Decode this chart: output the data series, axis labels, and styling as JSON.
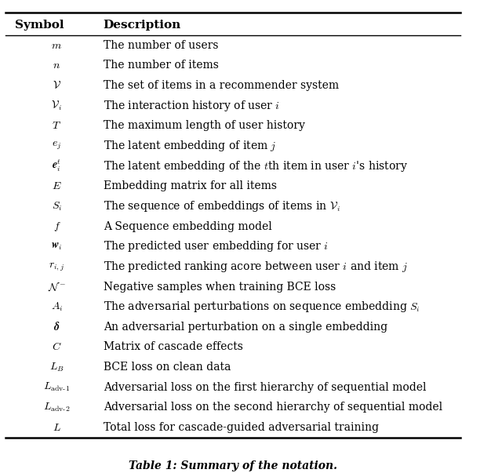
{
  "title": "Table 1: Summary of the notation.",
  "header": [
    "Symbol",
    "Description"
  ],
  "rows": [
    [
      "$m$",
      "The number of users"
    ],
    [
      "$n$",
      "The number of items"
    ],
    [
      "$\\mathcal{V}$",
      "The set of items in a recommender system"
    ],
    [
      "$\\mathcal{V}_i$",
      "The interaction history of user $i$"
    ],
    [
      "$T$",
      "The maximum length of user history"
    ],
    [
      "$e_j$",
      "The latent embedding of item $j$"
    ],
    [
      "$\\boldsymbol{e}_i^t$",
      "The latent embedding of the $t$th item in user $i$'s history"
    ],
    [
      "$E$",
      "Embedding matrix for all items"
    ],
    [
      "$S_i$",
      "The sequence of embeddings of items in $\\mathcal{V}_i$"
    ],
    [
      "$f$",
      "A Sequence embedding model"
    ],
    [
      "$\\boldsymbol{w}_i$",
      "The predicted user embedding for user $i$"
    ],
    [
      "$r_{i,j}$",
      "The predicted ranking acore between user $i$ and item $j$"
    ],
    [
      "$\\mathcal{N}^-$",
      "Negative samples when training BCE loss"
    ],
    [
      "$A_i$",
      "The adversarial perturbations on sequence embedding $S_i$"
    ],
    [
      "$\\boldsymbol{\\delta}$",
      "An adversarial perturbation on a single embedding"
    ],
    [
      "$C$",
      "Matrix of cascade effects"
    ],
    [
      "$L_B$",
      "BCE loss on clean data"
    ],
    [
      "$L_{\\mathrm{adv\\text{-}1}}$",
      "Adversarial loss on the first hierarchy of sequential model"
    ],
    [
      "$L_{\\mathrm{adv\\text{-}2}}$",
      "Adversarial loss on the second hierarchy of sequential model"
    ],
    [
      "$L$",
      "Total loss for cascade-guided adversarial training"
    ]
  ],
  "bg_color": "#ffffff",
  "text_color": "#000000",
  "header_bg": "#f0f0f0",
  "figsize": [
    6.4,
    6.03
  ],
  "dpi": 100
}
